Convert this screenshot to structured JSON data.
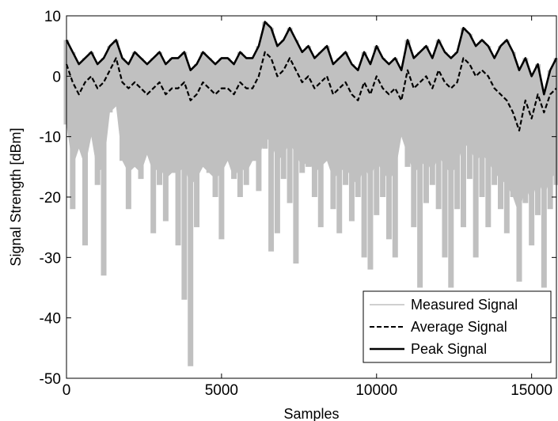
{
  "chart_data": {
    "type": "line",
    "xlabel": "Samples",
    "ylabel": "Signal Strength [dBm]",
    "xlim": [
      0,
      15800
    ],
    "ylim": [
      -50,
      10
    ],
    "xticks": [
      0,
      5000,
      10000,
      15000
    ],
    "xtick_labels": [
      "0",
      "5000",
      "10000",
      "15000"
    ],
    "yticks": [
      -50,
      -40,
      -30,
      -20,
      -10,
      0,
      10
    ],
    "ytick_labels": [
      "-50",
      "-40",
      "-30",
      "-20",
      "-10",
      "0",
      "10"
    ],
    "grid": false,
    "legend_position": "bottom-right",
    "x": [
      0,
      200,
      400,
      600,
      800,
      1000,
      1200,
      1400,
      1600,
      1800,
      2000,
      2200,
      2400,
      2600,
      2800,
      3000,
      3200,
      3400,
      3600,
      3800,
      4000,
      4200,
      4400,
      4600,
      4800,
      5000,
      5200,
      5400,
      5600,
      5800,
      6000,
      6200,
      6400,
      6600,
      6800,
      7000,
      7200,
      7400,
      7600,
      7800,
      8000,
      8200,
      8400,
      8600,
      8800,
      9000,
      9200,
      9400,
      9600,
      9800,
      10000,
      10200,
      10400,
      10600,
      10800,
      11000,
      11200,
      11400,
      11600,
      11800,
      12000,
      12200,
      12400,
      12600,
      12800,
      13000,
      13200,
      13400,
      13600,
      13800,
      14000,
      14200,
      14400,
      14600,
      14800,
      15000,
      15200,
      15400,
      15600,
      15800
    ],
    "series": [
      {
        "name": "Peak Signal",
        "style": "solid",
        "color": "#000000",
        "values": [
          6,
          4,
          2,
          3,
          4,
          2,
          3,
          5,
          6,
          3,
          2,
          4,
          3,
          2,
          3,
          4,
          2,
          3,
          3,
          4,
          1,
          2,
          4,
          3,
          2,
          3,
          3,
          2,
          4,
          3,
          3,
          5,
          9,
          8,
          5,
          6,
          8,
          6,
          4,
          5,
          3,
          4,
          5,
          2,
          3,
          4,
          2,
          1,
          4,
          2,
          5,
          3,
          2,
          3,
          1,
          6,
          3,
          4,
          5,
          3,
          6,
          4,
          3,
          4,
          8,
          7,
          5,
          6,
          5,
          3,
          5,
          6,
          4,
          1,
          3,
          0,
          2,
          -3,
          1,
          3
        ]
      },
      {
        "name": "Average Signal",
        "style": "dashed",
        "color": "#000000",
        "values": [
          2,
          -1,
          -3,
          -1,
          0,
          -2,
          -1,
          1,
          3,
          -1,
          -2,
          -1,
          -2,
          -3,
          -2,
          -1,
          -3,
          -2,
          -2,
          -1,
          -4,
          -3,
          -1,
          -2,
          -3,
          -2,
          -2,
          -3,
          -1,
          -2,
          -2,
          0,
          4,
          3,
          0,
          1,
          3,
          1,
          -1,
          0,
          -2,
          -1,
          0,
          -3,
          -2,
          -1,
          -3,
          -4,
          -1,
          -3,
          0,
          -2,
          -3,
          -2,
          -4,
          1,
          -2,
          -1,
          0,
          -2,
          1,
          -1,
          -2,
          -1,
          3,
          2,
          0,
          1,
          0,
          -2,
          -3,
          -4,
          -6,
          -9,
          -4,
          -7,
          -3,
          -6,
          -3,
          -2
        ]
      },
      {
        "name": "Measured Signal",
        "style": "solid",
        "color": "#c0c0c0",
        "values": [
          -8,
          -22,
          -12,
          -28,
          -10,
          -18,
          -33,
          -6,
          -5,
          -14,
          -22,
          -15,
          -17,
          -13,
          -26,
          -18,
          -24,
          -16,
          -28,
          -37,
          -48,
          -25,
          -15,
          -16,
          -20,
          -27,
          -14,
          -17,
          -20,
          -18,
          -14,
          -19,
          -12,
          -29,
          -26,
          -17,
          -21,
          -31,
          -16,
          -15,
          -20,
          -25,
          -14,
          -22,
          -26,
          -18,
          -24,
          -20,
          -30,
          -32,
          -23,
          -20,
          -27,
          -30,
          -10,
          -15,
          -25,
          -35,
          -21,
          -18,
          -22,
          -30,
          -35,
          -22,
          -25,
          -17,
          -30,
          -20,
          -25,
          -18,
          -22,
          -26,
          -20,
          -34,
          -21,
          -28,
          -23,
          -35,
          -22,
          -18
        ]
      }
    ]
  }
}
